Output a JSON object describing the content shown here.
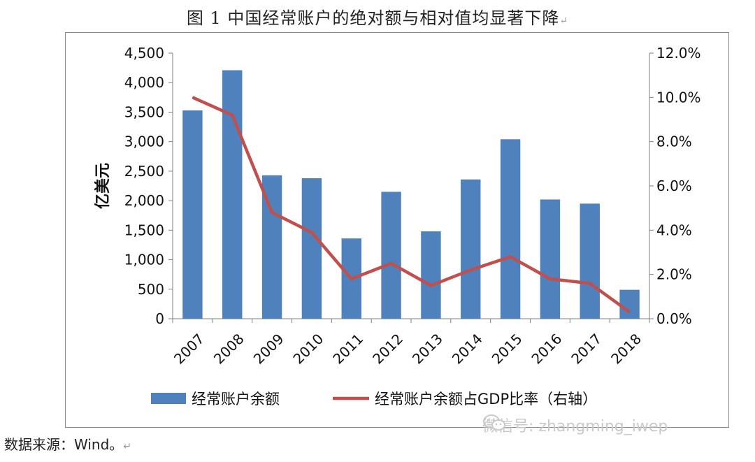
{
  "title": "图 1   中国经常账户的绝对额与相对值均显著下降",
  "title_mark": "↵",
  "source_text": "数据来源：Wind。",
  "source_mark": "↵",
  "watermark_text": "微信号: zhangming_iwep",
  "colors": {
    "bar": "#4f81bd",
    "line": "#c0504d",
    "grid": "#bfbfbf",
    "axis": "#7f7f7f"
  },
  "chart_data": {
    "type": "bar+line",
    "title": "图 1   中国经常账户的绝对额与相对值均显著下降",
    "categories": [
      "2007",
      "2008",
      "2009",
      "2010",
      "2011",
      "2012",
      "2013",
      "2014",
      "2015",
      "2016",
      "2017",
      "2018"
    ],
    "series": [
      {
        "name": "经常账户余额",
        "type": "bar",
        "axis": "left",
        "values": [
          3530,
          4210,
          2430,
          2380,
          1360,
          2150,
          1480,
          2360,
          3040,
          2020,
          1950,
          490
        ]
      },
      {
        "name": "经常账户余额占GDP比率（右轴）",
        "type": "line",
        "axis": "right",
        "values": [
          10.0,
          9.2,
          4.8,
          3.9,
          1.8,
          2.5,
          1.5,
          2.2,
          2.8,
          1.8,
          1.6,
          0.3
        ]
      }
    ],
    "ylabel": "亿美元",
    "ylim": [
      0,
      4500
    ],
    "yticks": [
      0,
      500,
      1000,
      1500,
      2000,
      2500,
      3000,
      3500,
      4000,
      4500
    ],
    "ytick_labels": [
      "0",
      "500",
      "1,000",
      "1,500",
      "2,000",
      "2,500",
      "3,000",
      "3,500",
      "4,000",
      "4,500"
    ],
    "y2lim": [
      0,
      12
    ],
    "y2ticks": [
      0,
      2,
      4,
      6,
      8,
      10,
      12
    ],
    "y2tick_labels": [
      "0.0%",
      "2.0%",
      "4.0%",
      "6.0%",
      "8.0%",
      "10.0%",
      "12.0%"
    ],
    "grid": false,
    "legend": "bottom"
  }
}
